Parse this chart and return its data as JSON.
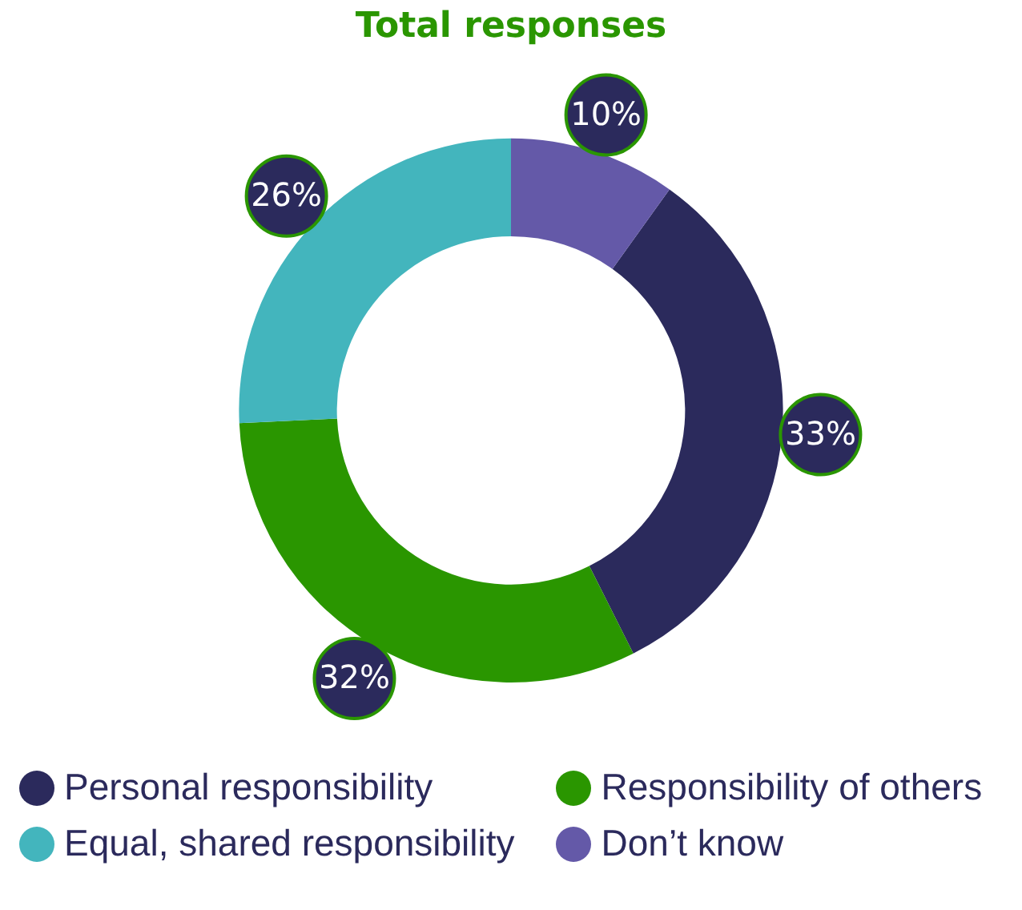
{
  "chart_data": {
    "type": "donut",
    "title": "Total responses",
    "categories": [
      "Personal responsibility",
      "Responsibility of others",
      "Equal, shared responsibility",
      "Don’t know"
    ],
    "values": [
      33,
      32,
      26,
      10
    ],
    "value_labels": [
      "33%",
      "32%",
      "26%",
      "10%"
    ],
    "colors": [
      "#2b2a5c",
      "#2a9600",
      "#43b5bd",
      "#6459a8"
    ],
    "legend": "bottom"
  }
}
